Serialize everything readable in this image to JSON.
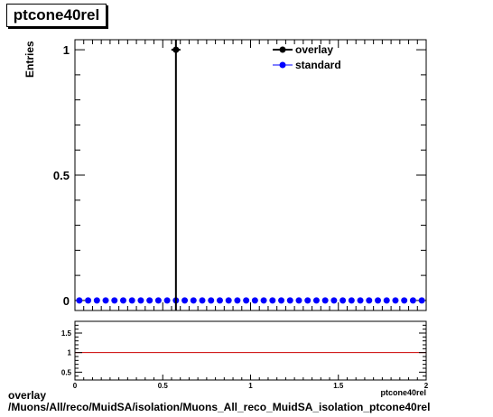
{
  "page": {
    "title": "ptcone40rel",
    "caption_line1": "overlay",
    "caption_line2": "/Muons/All/reco/MuidSA/isolation/Muons_All_reco_MuidSA_isolation_ptcone40rel"
  },
  "chart_data": [
    {
      "type": "scatter",
      "title": "ptcone40rel",
      "ylabel": "Entries",
      "xlabel": "ptcone40rel",
      "xlim": [
        0,
        2
      ],
      "ylim": [
        -0.04,
        1.04
      ],
      "yticks": [
        {
          "value": 0,
          "label": "0"
        },
        {
          "value": 0.5,
          "label": "0.5"
        },
        {
          "value": 1,
          "label": "1"
        }
      ],
      "legend_position": "top-right",
      "series": [
        {
          "name": "overlay",
          "color": "#000000",
          "x": [
            0.575
          ],
          "y": [
            1
          ],
          "drop_line_x": 0.575
        },
        {
          "name": "standard",
          "color": "#0000ff",
          "x_start": 0.025,
          "x_step": 0.05,
          "count": 40,
          "y": 0
        }
      ]
    },
    {
      "type": "line",
      "title": "",
      "xlabel": "ptcone40rel",
      "xlim": [
        0,
        2
      ],
      "ylim": [
        0.3,
        1.8
      ],
      "xticks": [
        {
          "value": 0,
          "label": "0"
        },
        {
          "value": 0.5,
          "label": "0.5"
        },
        {
          "value": 1,
          "label": "1"
        },
        {
          "value": 1.5,
          "label": "1.5"
        },
        {
          "value": 2,
          "label": "2"
        }
      ],
      "yticks": [
        {
          "value": 0.5,
          "label": "0.5"
        },
        {
          "value": 1,
          "label": "1"
        },
        {
          "value": 1.5,
          "label": "1.5"
        }
      ],
      "reference_line": {
        "y": 1,
        "color": "#cc0000"
      }
    }
  ]
}
